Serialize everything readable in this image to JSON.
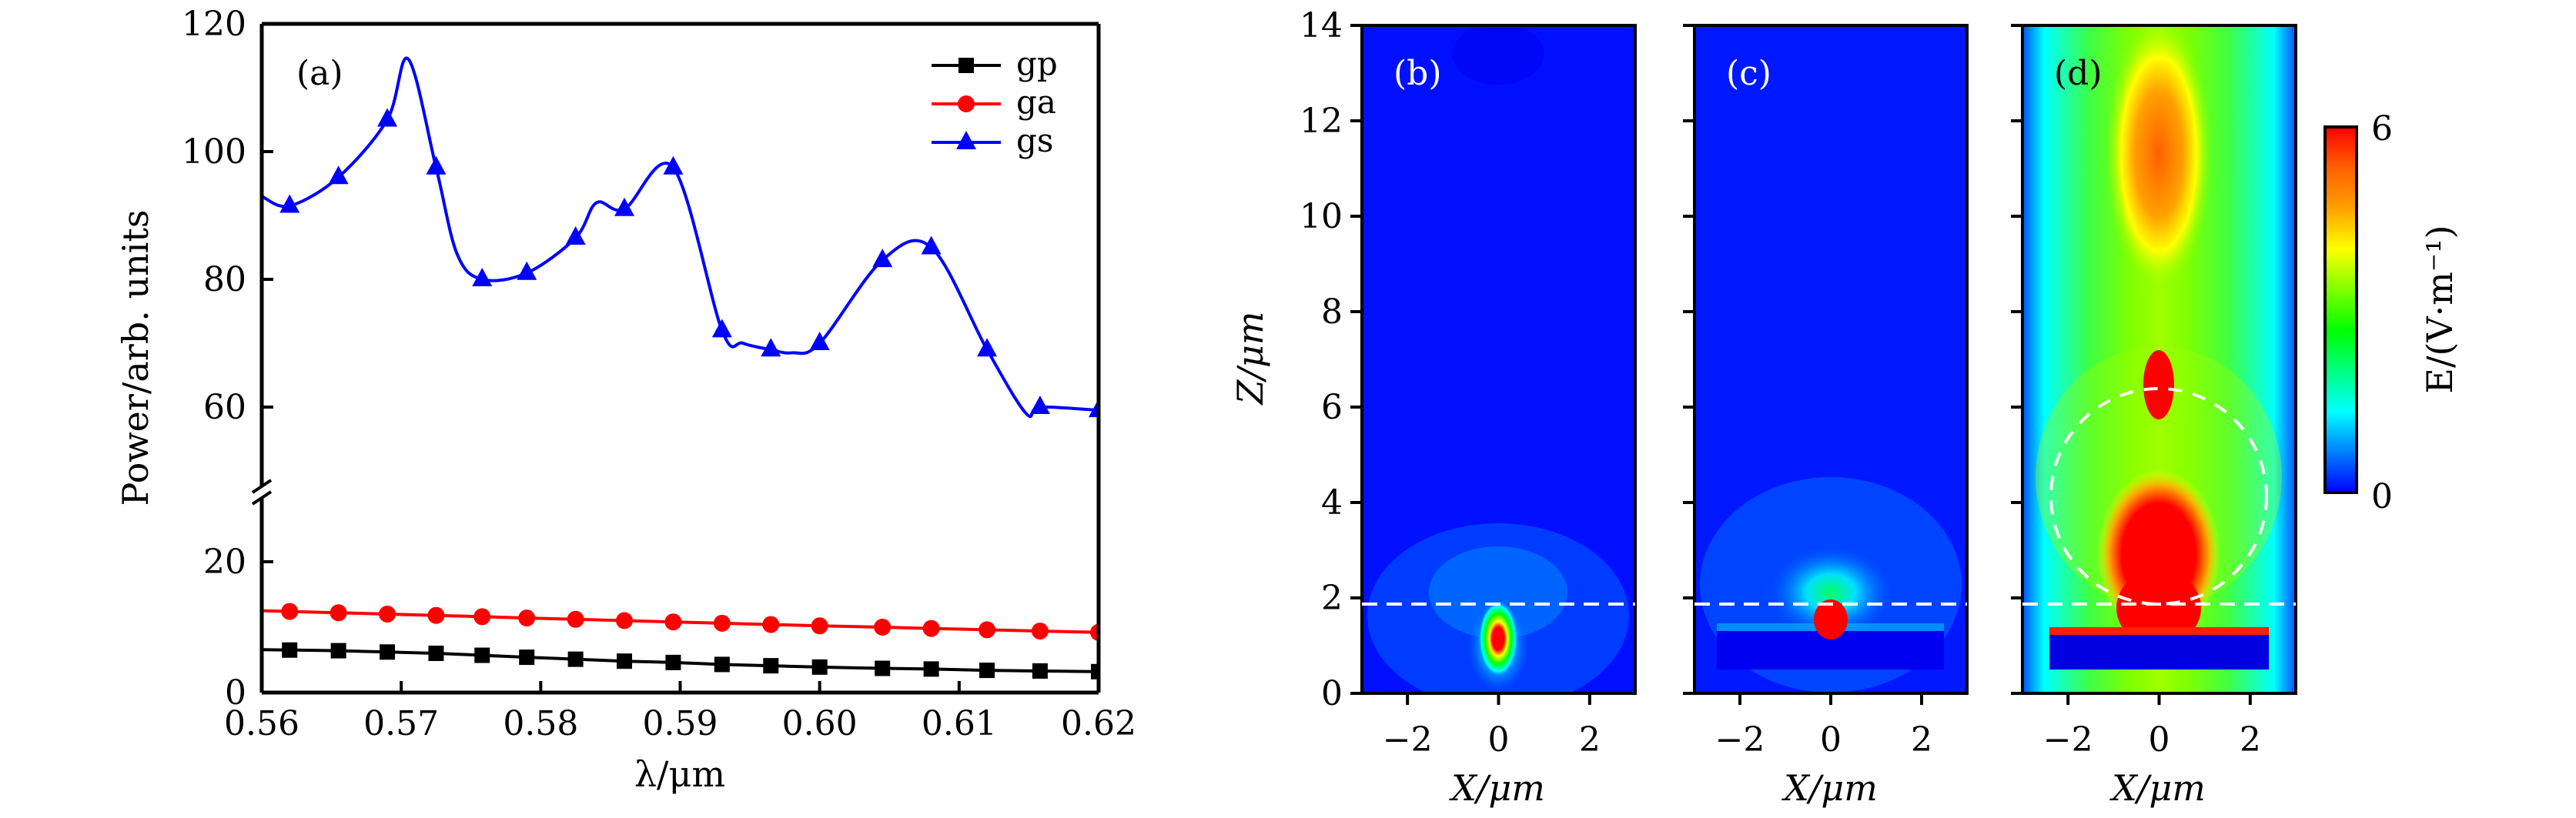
{
  "chart_data": [
    {
      "type": "line",
      "panel_label": "(a)",
      "xlabel": "λ/μm",
      "ylabel": "Power/arb. units",
      "xlim": [
        0.56,
        0.62
      ],
      "x_ticks": [
        "0.56",
        "0.57",
        "0.58",
        "0.59",
        "0.60",
        "0.61",
        "0.62"
      ],
      "y_axis_break": true,
      "ylim_lower": [
        0,
        30
      ],
      "ylim_upper": [
        50,
        120
      ],
      "y_ticks_lower": [
        "0",
        "20"
      ],
      "y_ticks_upper": [
        "60",
        "80",
        "100",
        "120"
      ],
      "legend_position": "top-right",
      "series": [
        {
          "name": "gp",
          "color": "#000000",
          "marker": "square",
          "x": [
            0.562,
            0.5655,
            0.569,
            0.5725,
            0.5758,
            0.579,
            0.5825,
            0.586,
            0.5895,
            0.593,
            0.5965,
            0.6,
            0.6045,
            0.608,
            0.612,
            0.6158,
            0.62
          ],
          "values": [
            6.5,
            6.4,
            6.2,
            6.0,
            5.7,
            5.4,
            5.1,
            4.8,
            4.6,
            4.3,
            4.1,
            3.9,
            3.7,
            3.6,
            3.4,
            3.3,
            3.2
          ]
        },
        {
          "name": "ga",
          "color": "#ff0000",
          "marker": "circle",
          "x": [
            0.562,
            0.5655,
            0.569,
            0.5725,
            0.5758,
            0.579,
            0.5825,
            0.586,
            0.5895,
            0.593,
            0.5965,
            0.6,
            0.6045,
            0.608,
            0.612,
            0.6158,
            0.62
          ],
          "values": [
            12.4,
            12.2,
            12.0,
            11.8,
            11.6,
            11.4,
            11.2,
            11.0,
            10.8,
            10.6,
            10.4,
            10.2,
            10.0,
            9.8,
            9.6,
            9.4,
            9.2
          ]
        },
        {
          "name": "gs",
          "color": "#0000ff",
          "marker": "triangle",
          "x": [
            0.562,
            0.5655,
            0.569,
            0.5725,
            0.5758,
            0.579,
            0.5825,
            0.586,
            0.5895,
            0.593,
            0.5965,
            0.6,
            0.6045,
            0.608,
            0.612,
            0.6158,
            0.62
          ],
          "values": [
            91.5,
            96,
            105,
            97.5,
            80,
            81,
            86.5,
            91,
            97.5,
            72,
            69,
            70,
            83,
            85,
            69,
            60,
            59.5
          ],
          "curve_x": [
            0.56,
            0.562,
            0.5655,
            0.569,
            0.5705,
            0.5725,
            0.574,
            0.5758,
            0.579,
            0.5825,
            0.584,
            0.586,
            0.5895,
            0.593,
            0.5945,
            0.5965,
            0.598,
            0.6,
            0.6045,
            0.608,
            0.612,
            0.6148,
            0.6158,
            0.62
          ],
          "curve_y": [
            93,
            91.5,
            96,
            105,
            114.5,
            97.5,
            84,
            80,
            81,
            86.5,
            92,
            91,
            97.5,
            72,
            70,
            69,
            68.5,
            70,
            83,
            85,
            69,
            59,
            60,
            59.5
          ]
        }
      ]
    },
    {
      "type": "heatmap",
      "panel_label": "(b)",
      "xlabel": "X/μm",
      "ylabel": "Z/μm",
      "xlim": [
        -3,
        3
      ],
      "ylim": [
        0,
        14
      ],
      "x_ticks": [
        "−2",
        "0",
        "2"
      ],
      "y_ticks": [
        "0",
        "2",
        "4",
        "6",
        "8",
        "10",
        "12",
        "14"
      ],
      "dashed_line_z": 1.85,
      "description": "Mostly low field (blue); single hot spot at X=0, Z≈1.1"
    },
    {
      "type": "heatmap",
      "panel_label": "(c)",
      "xlabel": "X/μm",
      "xlim": [
        -3,
        3
      ],
      "ylim": [
        0,
        14
      ],
      "x_ticks": [
        "−2",
        "0",
        "2"
      ],
      "dashed_line_z": 1.85,
      "description": "Mostly low field; hot spot at X=0, Z≈1.6 above substrate slab (X −2.5..2.5, Z 0.6..1.3)"
    },
    {
      "type": "heatmap",
      "panel_label": "(d)",
      "xlabel": "X/μm",
      "xlim": [
        -3,
        3
      ],
      "ylim": [
        0,
        14
      ],
      "x_ticks": [
        "−2",
        "0",
        "2"
      ],
      "dashed_line_z": 1.85,
      "dashed_circle": {
        "center_x": 0,
        "center_z": 4.1,
        "radius": 2.3
      },
      "description": "Strong focused field; red region Z 1.2–3.5 and 5–6.8 along X=0, orange lobe near Z≈11"
    }
  ],
  "colorbar": {
    "label": "E/(V·m⁻¹)",
    "min_label": "0",
    "max_label": "6",
    "min": 0,
    "max": 6,
    "colormap": [
      "#0000ff",
      "#0080ff",
      "#00ffff",
      "#00ff80",
      "#00ff00",
      "#80ff00",
      "#ffff00",
      "#ffa000",
      "#ff6000",
      "#ff0000"
    ]
  }
}
